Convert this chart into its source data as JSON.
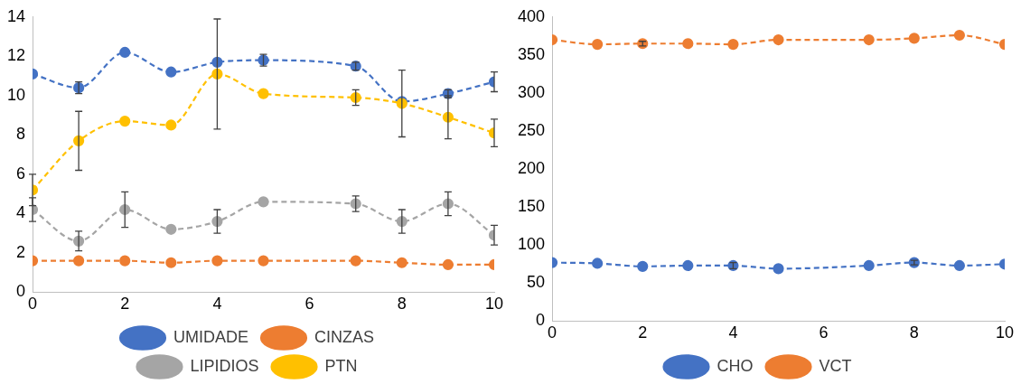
{
  "chart_data": [
    {
      "type": "line",
      "x": [
        0,
        1,
        2,
        3,
        4,
        5,
        7,
        8,
        9,
        10
      ],
      "xlim": [
        0,
        10
      ],
      "xticks": [
        0,
        2,
        4,
        6,
        8,
        10
      ],
      "ylim": [
        0,
        14
      ],
      "yticks": [
        0,
        2,
        4,
        6,
        8,
        10,
        12,
        14
      ],
      "marker": "circle",
      "line_style": "dashed",
      "legend": "bottom",
      "grid": false,
      "series": [
        {
          "name": "UMIDADE",
          "color": "#4472c4",
          "values": [
            11.1,
            10.4,
            12.2,
            11.2,
            11.7,
            11.8,
            11.5,
            9.7,
            10.1,
            10.7
          ],
          "errors": [
            null,
            0.3,
            null,
            null,
            null,
            0.3,
            0.2,
            null,
            0.2,
            0.5
          ]
        },
        {
          "name": "CINZAS",
          "color": "#ed7d31",
          "values": [
            1.6,
            1.6,
            1.6,
            1.5,
            1.6,
            1.6,
            1.6,
            1.5,
            1.4,
            1.4
          ]
        },
        {
          "name": "LIPIDIOS",
          "color": "#a5a5a5",
          "values": [
            4.2,
            2.6,
            4.2,
            3.2,
            3.6,
            4.6,
            4.5,
            3.6,
            4.5,
            2.9
          ],
          "errors": [
            0.6,
            0.5,
            0.9,
            null,
            0.6,
            null,
            0.4,
            0.6,
            0.6,
            0.5
          ]
        },
        {
          "name": "PTN",
          "color": "#ffc000",
          "values": [
            5.2,
            7.7,
            8.7,
            8.5,
            11.1,
            10.1,
            9.9,
            9.6,
            8.9,
            8.1
          ],
          "errors": [
            0.8,
            1.5,
            null,
            null,
            2.8,
            null,
            0.4,
            1.7,
            1.1,
            0.7
          ]
        }
      ]
    },
    {
      "type": "line",
      "x": [
        0,
        1,
        2,
        3,
        4,
        5,
        7,
        8,
        9,
        10
      ],
      "xlim": [
        0,
        10
      ],
      "xticks": [
        0,
        2,
        4,
        6,
        8,
        10
      ],
      "ylim": [
        0,
        400
      ],
      "yticks": [
        0,
        50,
        100,
        150,
        200,
        250,
        300,
        350,
        400
      ],
      "marker": "circle",
      "line_style": "dashed",
      "legend": "bottom",
      "grid": false,
      "series": [
        {
          "name": "CHO",
          "color": "#4472c4",
          "values": [
            77,
            76,
            72,
            73,
            73,
            69,
            73,
            77,
            73,
            75
          ],
          "errors": [
            null,
            null,
            null,
            null,
            4,
            null,
            null,
            3,
            null,
            null
          ]
        },
        {
          "name": "VCT",
          "color": "#ed7d31",
          "values": [
            370,
            364,
            365,
            365,
            364,
            370,
            370,
            372,
            376,
            364
          ],
          "errors": [
            null,
            null,
            3,
            null,
            null,
            null,
            null,
            null,
            null,
            null
          ]
        }
      ]
    }
  ]
}
